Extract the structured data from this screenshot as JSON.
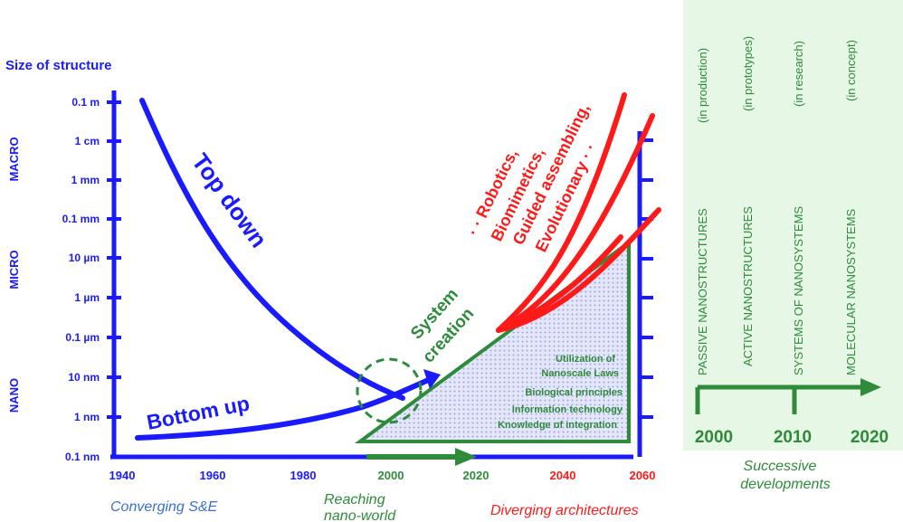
{
  "y_axis": {
    "title": "Size of structure",
    "ticks": [
      "0.1 m",
      "1 cm",
      "1 mm",
      "0.1 mm",
      "10 µm",
      "1 µm",
      "0.1 µm",
      "10 nm",
      "1 nm",
      "0.1 nm"
    ],
    "regions": [
      "MACRO",
      "MICRO",
      "NANO"
    ]
  },
  "x_axis": {
    "ticks": [
      "1940",
      "1960",
      "1980",
      "2000",
      "2020",
      "2040",
      "2060"
    ]
  },
  "curves": {
    "top_down": "Top down",
    "bottom_up": "Bottom up",
    "system_creation_1": "System",
    "system_creation_2": "creation",
    "red_labels": [
      "· · Robotics,",
      "Biomimetics,",
      "Guided assembling,",
      "Evolutionary · ·"
    ]
  },
  "triangle_text": [
    "Utilization of",
    "Nanoscale Laws",
    "Biological principles",
    "Information technology",
    "Knowledge of integration"
  ],
  "bottom_captions": {
    "converging": "Converging S&E",
    "reaching_1": "Reaching",
    "reaching_2": "nano-world",
    "diverging": "Diverging architectures"
  },
  "side_panel": {
    "columns": [
      {
        "name": "PASSIVE NANOSTRUCTURES",
        "status": "(in production)"
      },
      {
        "name": "ACTIVE NANOSTRUCTURES",
        "status": "(in prototypes)"
      },
      {
        "name": "SYSTEMS OF NANOSYSTEMS",
        "status": "(in research)"
      },
      {
        "name": "MOLECULAR NANOSYSTEMS",
        "status": "(in concept)"
      }
    ],
    "years": [
      "2000",
      "2010",
      "2020"
    ],
    "caption_1": "Successive",
    "caption_2": "developments"
  },
  "colors": {
    "blue": "#1a1aff",
    "green": "#2e8b3a",
    "red": "#ff1a1a",
    "panel_bg": "#e6f7e6",
    "triangle_fill": "#d9dcf5"
  }
}
